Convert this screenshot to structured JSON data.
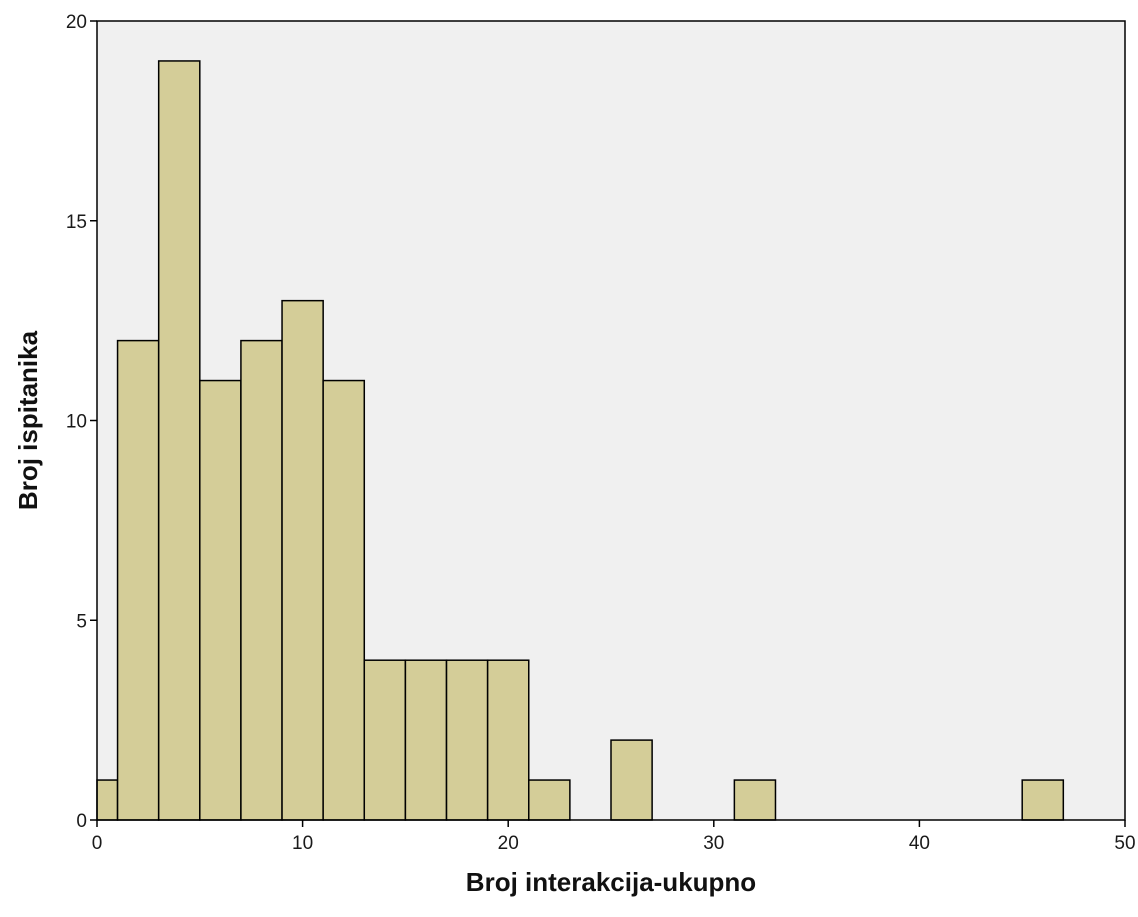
{
  "chart_data": {
    "type": "bar",
    "xlabel": "Broj interakcija-ukupno",
    "ylabel": "Broj ispitanika",
    "xlim": [
      0,
      50
    ],
    "ylim": [
      0,
      20
    ],
    "x_ticks": [
      0,
      10,
      20,
      30,
      40,
      50
    ],
    "y_ticks": [
      0,
      5,
      10,
      15,
      20
    ],
    "grid": false,
    "bin_width": 2,
    "bins": [
      {
        "start": -1,
        "end": 1,
        "count": 1
      },
      {
        "start": 1,
        "end": 3,
        "count": 12
      },
      {
        "start": 3,
        "end": 5,
        "count": 19
      },
      {
        "start": 5,
        "end": 7,
        "count": 11
      },
      {
        "start": 7,
        "end": 9,
        "count": 12
      },
      {
        "start": 9,
        "end": 11,
        "count": 13
      },
      {
        "start": 11,
        "end": 13,
        "count": 11
      },
      {
        "start": 13,
        "end": 15,
        "count": 4
      },
      {
        "start": 15,
        "end": 17,
        "count": 4
      },
      {
        "start": 17,
        "end": 19,
        "count": 4
      },
      {
        "start": 19,
        "end": 21,
        "count": 4
      },
      {
        "start": 21,
        "end": 23,
        "count": 1
      },
      {
        "start": 25,
        "end": 27,
        "count": 2
      },
      {
        "start": 31,
        "end": 33,
        "count": 1
      },
      {
        "start": 45,
        "end": 47,
        "count": 1
      }
    ],
    "colors": {
      "bar_fill": "#d4cd98",
      "bar_stroke": "#000000",
      "plot_background": "#f0f0f0",
      "frame": "#000000"
    }
  }
}
